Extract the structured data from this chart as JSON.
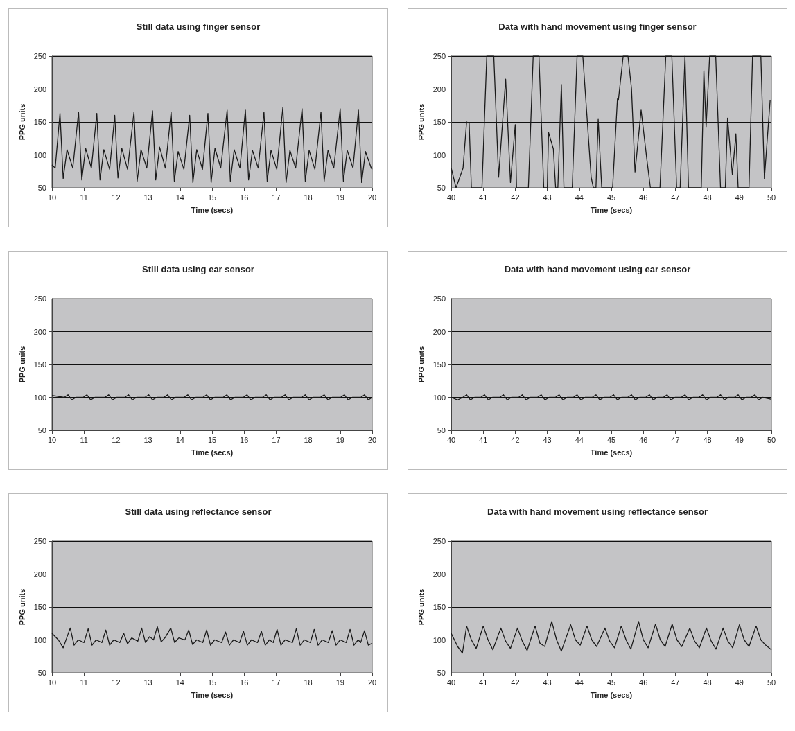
{
  "chart_data": [
    {
      "type": "line",
      "title": "Still data using finger sensor",
      "xlabel": "Time (secs)",
      "ylabel": "PPG units",
      "xlim": [
        10,
        20
      ],
      "xticks": [
        10,
        11,
        12,
        13,
        14,
        15,
        16,
        17,
        18,
        19,
        20
      ],
      "ylim": [
        50,
        250
      ],
      "yticks": [
        50,
        100,
        150,
        200,
        250
      ],
      "grid": "y",
      "marker": "none",
      "color": "#1a1a1a",
      "x": [
        10.0,
        10.1,
        10.25,
        10.35,
        10.47,
        10.65,
        10.83,
        10.93,
        11.05,
        11.23,
        11.4,
        11.5,
        11.62,
        11.8,
        11.96,
        12.06,
        12.18,
        12.36,
        12.56,
        12.66,
        12.78,
        12.96,
        13.14,
        13.24,
        13.36,
        13.54,
        13.72,
        13.82,
        13.94,
        14.12,
        14.3,
        14.4,
        14.52,
        14.7,
        14.87,
        14.97,
        15.09,
        15.27,
        15.47,
        15.57,
        15.69,
        15.87,
        16.04,
        16.14,
        16.26,
        16.44,
        16.62,
        16.72,
        16.84,
        17.02,
        17.21,
        17.31,
        17.43,
        17.61,
        17.81,
        17.91,
        18.03,
        18.21,
        18.4,
        18.5,
        18.62,
        18.8,
        19.0,
        19.1,
        19.22,
        19.4,
        19.57,
        19.67,
        19.79,
        19.97,
        20.0
      ],
      "values": [
        85,
        80,
        163,
        64,
        108,
        80,
        165,
        62,
        110,
        80,
        163,
        62,
        108,
        78,
        160,
        65,
        110,
        78,
        165,
        60,
        108,
        80,
        167,
        62,
        112,
        80,
        165,
        60,
        105,
        78,
        160,
        58,
        108,
        78,
        163,
        58,
        110,
        80,
        168,
        60,
        108,
        80,
        168,
        62,
        107,
        80,
        165,
        60,
        107,
        78,
        172,
        58,
        107,
        80,
        170,
        60,
        107,
        78,
        165,
        60,
        107,
        80,
        170,
        60,
        107,
        80,
        168,
        58,
        105,
        80,
        78
      ]
    },
    {
      "type": "line",
      "title": "Data with hand movement using finger sensor",
      "xlabel": "Time (secs)",
      "ylabel": "PPG units",
      "xlim": [
        40,
        50
      ],
      "xticks": [
        40,
        41,
        42,
        43,
        44,
        45,
        46,
        47,
        48,
        49,
        50
      ],
      "ylim": [
        50,
        250
      ],
      "yticks": [
        50,
        100,
        150,
        200,
        250
      ],
      "grid": "y",
      "marker": "none",
      "color": "#1a1a1a",
      "x": [
        40.0,
        40.15,
        40.37,
        40.48,
        40.56,
        40.63,
        40.96,
        41.11,
        41.33,
        41.48,
        41.7,
        41.85,
        42.0,
        42.04,
        42.41,
        42.56,
        42.74,
        42.89,
        43.0,
        43.04,
        43.19,
        43.26,
        43.33,
        43.44,
        43.52,
        43.78,
        43.93,
        44.11,
        44.37,
        44.44,
        44.52,
        44.59,
        44.7,
        45.04,
        45.19,
        45.22,
        45.37,
        45.52,
        45.63,
        45.74,
        45.93,
        46.11,
        46.22,
        46.52,
        46.7,
        46.89,
        47.04,
        47.15,
        47.3,
        47.41,
        47.81,
        47.89,
        47.96,
        48.07,
        48.26,
        48.41,
        48.56,
        48.63,
        48.78,
        48.89,
        48.96,
        49.3,
        49.41,
        49.67,
        49.78,
        49.96
      ],
      "values": [
        80,
        50,
        80,
        150,
        148,
        50,
        50,
        250,
        250,
        66,
        215,
        58,
        146,
        50,
        50,
        250,
        250,
        50,
        50,
        134,
        109,
        50,
        50,
        207,
        50,
        50,
        250,
        250,
        66,
        50,
        50,
        154,
        50,
        50,
        185,
        183,
        250,
        250,
        201,
        74,
        168,
        93,
        50,
        50,
        250,
        250,
        50,
        50,
        250,
        50,
        50,
        228,
        142,
        250,
        250,
        50,
        50,
        156,
        70,
        132,
        50,
        50,
        250,
        250,
        64,
        183
      ]
    },
    {
      "type": "line",
      "title": "Still data using ear sensor",
      "xlabel": "Time (secs)",
      "ylabel": "PPG units",
      "xlim": [
        10,
        20
      ],
      "xticks": [
        10,
        11,
        12,
        13,
        14,
        15,
        16,
        17,
        18,
        19,
        20
      ],
      "ylim": [
        50,
        250
      ],
      "yticks": [
        50,
        100,
        150,
        200,
        250
      ],
      "grid": "y",
      "marker": "none",
      "color": "#1a1a1a",
      "x": [
        10.0,
        10.38,
        10.5,
        10.62,
        10.75,
        10.97,
        11.09,
        11.21,
        11.34,
        11.65,
        11.77,
        11.89,
        12.02,
        12.27,
        12.39,
        12.51,
        12.64,
        12.9,
        13.02,
        13.14,
        13.27,
        13.49,
        13.61,
        13.73,
        13.86,
        14.12,
        14.24,
        14.36,
        14.49,
        14.71,
        14.83,
        14.95,
        15.08,
        15.34,
        15.46,
        15.58,
        15.71,
        15.97,
        16.09,
        16.21,
        16.34,
        16.57,
        16.69,
        16.81,
        16.94,
        17.16,
        17.28,
        17.4,
        17.53,
        17.79,
        17.91,
        18.03,
        18.16,
        18.38,
        18.5,
        18.62,
        18.75,
        19.01,
        19.13,
        19.25,
        19.38,
        19.64,
        19.76,
        19.88,
        20.0
      ],
      "values": [
        103,
        100,
        104,
        96,
        100,
        100,
        104,
        96,
        100,
        100,
        104,
        96,
        100,
        100,
        104,
        96,
        100,
        100,
        104,
        96,
        100,
        100,
        104,
        96,
        100,
        100,
        104,
        96,
        100,
        100,
        104,
        96,
        100,
        100,
        104,
        96,
        100,
        100,
        104,
        96,
        100,
        100,
        104,
        96,
        100,
        100,
        104,
        96,
        100,
        100,
        104,
        96,
        100,
        100,
        104,
        96,
        100,
        100,
        104,
        96,
        100,
        100,
        104,
        96,
        100
      ]
    },
    {
      "type": "line",
      "title": "Data with hand movement using ear sensor",
      "xlabel": "Time (secs)",
      "ylabel": "PPG units",
      "xlim": [
        40,
        50
      ],
      "xticks": [
        40,
        41,
        42,
        43,
        44,
        45,
        46,
        47,
        48,
        49,
        50
      ],
      "ylim": [
        50,
        250
      ],
      "yticks": [
        50,
        100,
        150,
        200,
        250
      ],
      "grid": "y",
      "marker": "none",
      "color": "#1a1a1a",
      "x": [
        40.0,
        40.2,
        40.36,
        40.48,
        40.6,
        40.73,
        40.92,
        41.04,
        41.16,
        41.29,
        41.51,
        41.63,
        41.75,
        41.88,
        42.1,
        42.22,
        42.34,
        42.47,
        42.69,
        42.81,
        42.93,
        43.06,
        43.25,
        43.37,
        43.49,
        43.62,
        43.81,
        43.93,
        44.05,
        44.18,
        44.4,
        44.52,
        44.64,
        44.77,
        44.95,
        45.07,
        45.19,
        45.32,
        45.51,
        45.63,
        45.75,
        45.88,
        46.07,
        46.19,
        46.31,
        46.44,
        46.62,
        46.74,
        46.86,
        46.99,
        47.18,
        47.3,
        47.42,
        47.55,
        47.73,
        47.85,
        47.97,
        48.1,
        48.29,
        48.41,
        48.53,
        48.66,
        48.84,
        48.96,
        49.08,
        49.21,
        49.36,
        49.48,
        49.6,
        49.73,
        50.0
      ],
      "values": [
        100,
        96,
        100,
        104,
        96,
        100,
        100,
        104,
        96,
        100,
        100,
        104,
        96,
        100,
        100,
        104,
        96,
        100,
        100,
        104,
        96,
        100,
        100,
        104,
        96,
        100,
        100,
        104,
        96,
        100,
        100,
        104,
        96,
        100,
        100,
        104,
        96,
        100,
        100,
        104,
        96,
        100,
        100,
        104,
        96,
        100,
        100,
        104,
        96,
        100,
        100,
        104,
        96,
        100,
        100,
        104,
        96,
        100,
        100,
        104,
        96,
        100,
        100,
        104,
        96,
        100,
        100,
        104,
        96,
        100,
        97
      ]
    },
    {
      "type": "line",
      "title": "Still data using reflectance sensor",
      "xlabel": "Time (secs)",
      "ylabel": "PPG units",
      "xlim": [
        10,
        20
      ],
      "xticks": [
        10,
        11,
        12,
        13,
        14,
        15,
        16,
        17,
        18,
        19,
        20
      ],
      "ylim": [
        50,
        250
      ],
      "yticks": [
        50,
        100,
        150,
        200,
        250
      ],
      "grid": "y",
      "marker": "none",
      "color": "#1a1a1a",
      "x": [
        10.0,
        10.2,
        10.35,
        10.57,
        10.69,
        10.82,
        11.0,
        11.13,
        11.25,
        11.38,
        11.56,
        11.68,
        11.8,
        11.93,
        12.12,
        12.24,
        12.36,
        12.49,
        12.68,
        12.8,
        12.92,
        13.05,
        13.17,
        13.29,
        13.41,
        13.54,
        13.71,
        13.83,
        13.96,
        14.15,
        14.27,
        14.39,
        14.52,
        14.71,
        14.83,
        14.95,
        15.08,
        15.3,
        15.42,
        15.54,
        15.67,
        15.86,
        15.98,
        16.1,
        16.23,
        16.42,
        16.54,
        16.66,
        16.79,
        16.91,
        17.03,
        17.15,
        17.28,
        17.51,
        17.63,
        17.75,
        17.88,
        18.07,
        18.19,
        18.31,
        18.44,
        18.63,
        18.75,
        18.87,
        19.0,
        19.19,
        19.31,
        19.43,
        19.56,
        19.64,
        19.76,
        19.88,
        20.0
      ],
      "values": [
        110,
        100,
        88,
        118,
        92,
        100,
        96,
        117,
        92,
        100,
        96,
        115,
        92,
        100,
        96,
        110,
        94,
        103,
        98,
        118,
        96,
        105,
        100,
        120,
        97,
        104,
        118,
        96,
        103,
        100,
        115,
        93,
        100,
        96,
        115,
        92,
        100,
        96,
        112,
        92,
        100,
        96,
        113,
        92,
        100,
        96,
        113,
        92,
        100,
        96,
        116,
        92,
        100,
        96,
        117,
        92,
        100,
        96,
        116,
        92,
        100,
        96,
        114,
        92,
        100,
        96,
        116,
        92,
        100,
        96,
        114,
        92,
        95
      ]
    },
    {
      "type": "line",
      "title": "Data with hand movement using reflectance sensor",
      "xlabel": "Time (secs)",
      "ylabel": "PPG units",
      "xlim": [
        40,
        50
      ],
      "xticks": [
        40,
        41,
        42,
        43,
        44,
        45,
        46,
        47,
        48,
        49,
        50
      ],
      "ylim": [
        50,
        250
      ],
      "yticks": [
        50,
        100,
        150,
        200,
        250
      ],
      "grid": "y",
      "marker": "none",
      "color": "#1a1a1a",
      "x": [
        40.0,
        40.2,
        40.35,
        40.48,
        40.63,
        40.78,
        41.0,
        41.15,
        41.3,
        41.55,
        41.7,
        41.85,
        42.07,
        42.22,
        42.37,
        42.62,
        42.77,
        42.92,
        43.14,
        43.29,
        43.44,
        43.73,
        43.88,
        44.03,
        44.24,
        44.39,
        44.54,
        44.8,
        44.95,
        45.1,
        45.31,
        45.46,
        45.61,
        45.85,
        46.0,
        46.15,
        46.38,
        46.53,
        46.68,
        46.9,
        47.05,
        47.2,
        47.45,
        47.6,
        47.75,
        47.97,
        48.12,
        48.27,
        48.49,
        48.64,
        48.79,
        49.0,
        49.15,
        49.3,
        49.52,
        49.67,
        49.82,
        50.0
      ],
      "values": [
        110,
        90,
        80,
        121,
        100,
        87,
        121,
        100,
        85,
        118,
        98,
        87,
        118,
        98,
        84,
        121,
        95,
        90,
        128,
        100,
        83,
        123,
        100,
        92,
        121,
        100,
        90,
        118,
        98,
        88,
        121,
        100,
        86,
        128,
        100,
        88,
        124,
        100,
        90,
        124,
        100,
        90,
        118,
        98,
        88,
        118,
        98,
        86,
        118,
        98,
        88,
        123,
        100,
        90,
        121,
        100,
        92,
        85
      ]
    }
  ]
}
